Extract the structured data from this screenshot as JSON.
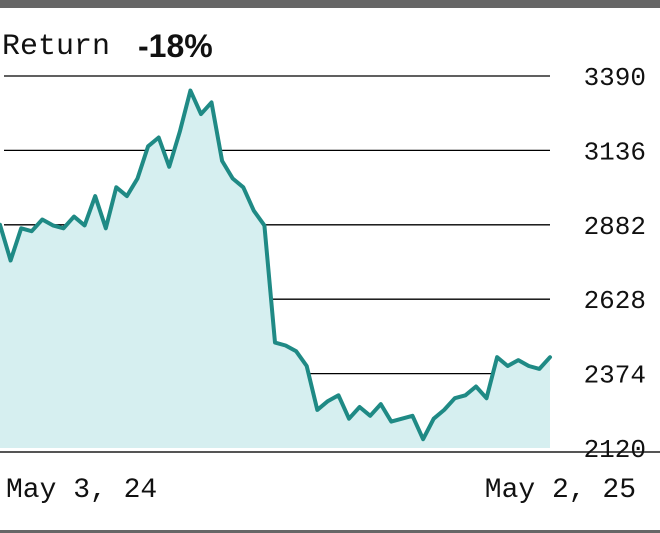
{
  "title": {
    "label": "Return",
    "value": "-18%"
  },
  "colors": {
    "line": "#1f8a85",
    "fill": "#d6eff0",
    "grid": "#000000",
    "frame": "#666666",
    "text": "#111111"
  },
  "chart_data": {
    "type": "area",
    "title": "Return -18%",
    "xlabel": "",
    "ylabel": "",
    "x_range": [
      "2024-05-03",
      "2025-05-02"
    ],
    "x_tick_labels": [
      "May 3, 24",
      "May 2, 25"
    ],
    "yticks": [
      2120,
      2374,
      2628,
      2882,
      3136,
      3390
    ],
    "ylim": [
      2120,
      3390
    ],
    "grid": true,
    "legend": "none",
    "series": [
      {
        "x": [
          "2024-05-03",
          "2024-05-10",
          "2024-05-17",
          "2024-05-24",
          "2024-05-31",
          "2024-06-07",
          "2024-06-14",
          "2024-06-21",
          "2024-06-28",
          "2024-07-05",
          "2024-07-12",
          "2024-07-19",
          "2024-07-26",
          "2024-08-02",
          "2024-08-09",
          "2024-08-16",
          "2024-08-23",
          "2024-08-30",
          "2024-09-06",
          "2024-09-13",
          "2024-09-20",
          "2024-09-27",
          "2024-10-04",
          "2024-10-11",
          "2024-10-18",
          "2024-10-25",
          "2024-11-01",
          "2024-11-08",
          "2024-11-15",
          "2024-11-22",
          "2024-11-29",
          "2024-12-06",
          "2024-12-13",
          "2024-12-20",
          "2024-12-27",
          "2025-01-03",
          "2025-01-10",
          "2025-01-17",
          "2025-01-24",
          "2025-01-31",
          "2025-02-07",
          "2025-02-14",
          "2025-02-21",
          "2025-02-28",
          "2025-03-07",
          "2025-03-14",
          "2025-03-21",
          "2025-03-28",
          "2025-04-04",
          "2025-04-11",
          "2025-04-18",
          "2025-04-25",
          "2025-05-02"
        ],
        "values": [
          2882,
          2760,
          2870,
          2860,
          2900,
          2880,
          2870,
          2910,
          2880,
          2980,
          2870,
          3010,
          2980,
          3040,
          3150,
          3180,
          3080,
          3200,
          3340,
          3260,
          3300,
          3100,
          3040,
          3010,
          2930,
          2880,
          2480,
          2470,
          2450,
          2400,
          2250,
          2280,
          2300,
          2220,
          2260,
          2230,
          2270,
          2210,
          2220,
          2230,
          2150,
          2220,
          2250,
          2290,
          2300,
          2330,
          2290,
          2430,
          2400,
          2420,
          2400,
          2390,
          2430
        ]
      }
    ]
  }
}
